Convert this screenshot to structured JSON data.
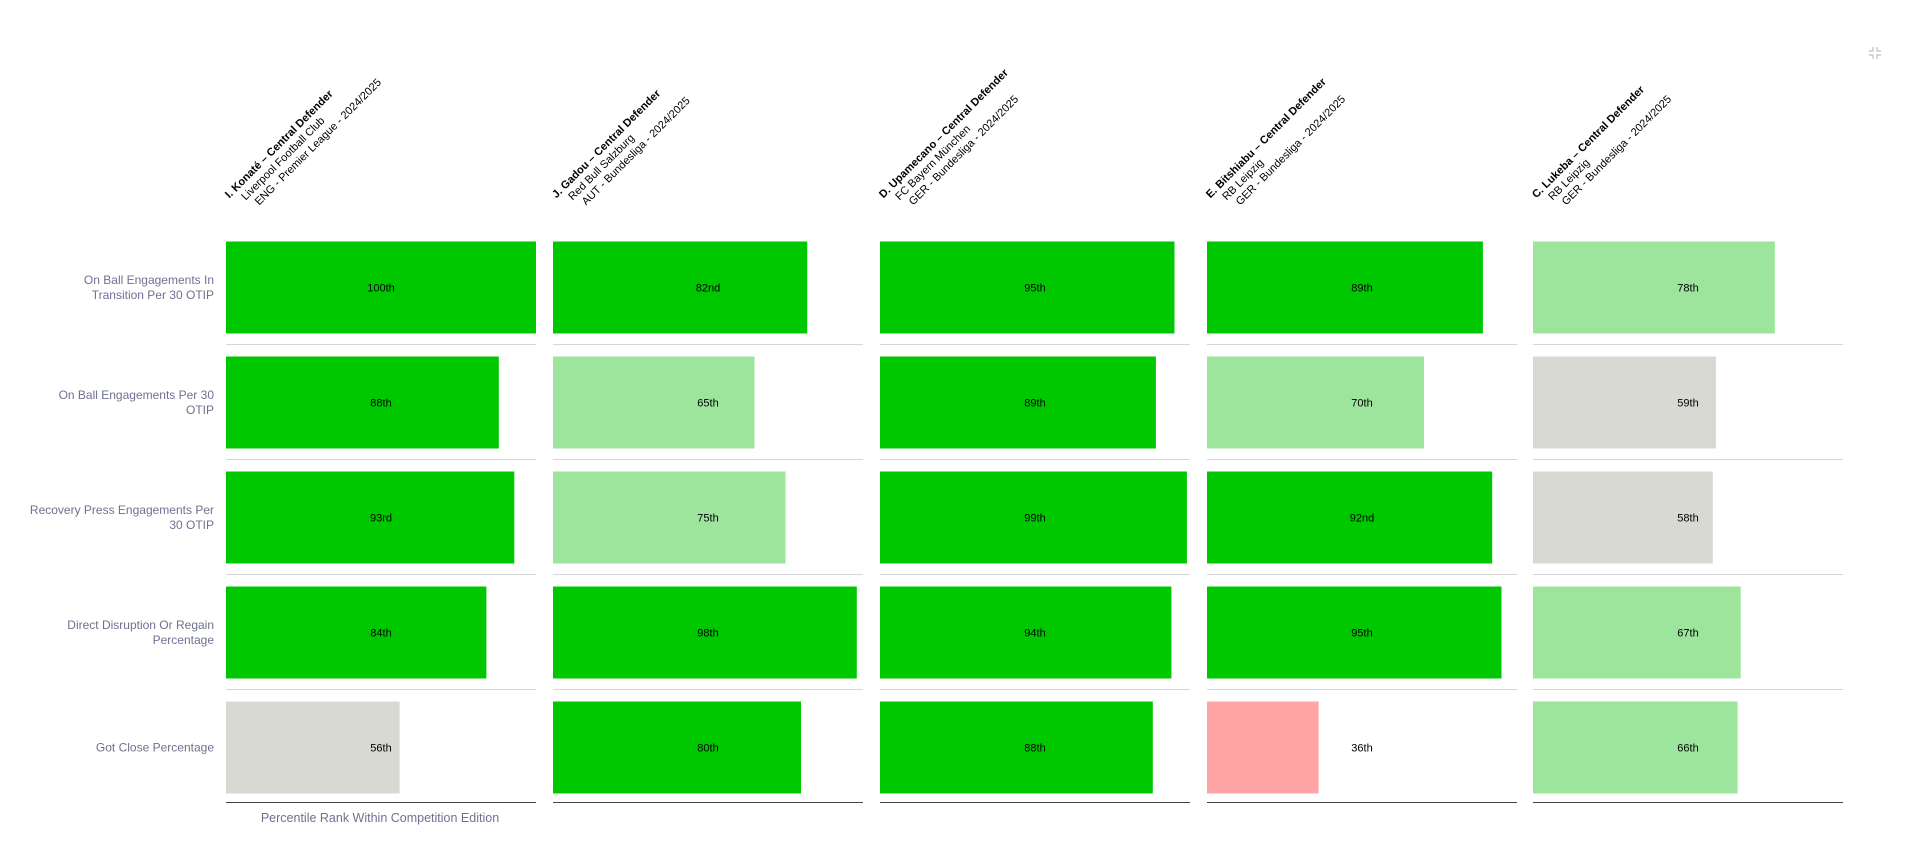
{
  "colors": {
    "high": "#00c800",
    "mid": "#9de59d",
    "neutral": "#d9d9d4",
    "low": "#ffa5a5",
    "row_label": "#6e7191",
    "icon": "#c8c8c8"
  },
  "icons": {
    "collapse": "collapse-icon"
  },
  "chart_data": {
    "type": "bar",
    "orientation": "horizontal",
    "xlabel": "Percentile Rank Within Competition Edition",
    "xlim": [
      0,
      100
    ],
    "categories": [
      "On Ball Engagements In Transition Per 30 OTIP",
      "On Ball Engagements Per 30 OTIP",
      "Recovery Press Engagements Per 30 OTIP",
      "Direct Disruption Or Regain Percentage",
      "Got Close Percentage"
    ],
    "series": [
      {
        "name": "I. Konaté – Central Defender",
        "club": "Liverpool Football Club",
        "competition": "ENG - Premier League - 2024/2025",
        "values": [
          100,
          88,
          93,
          84,
          56
        ],
        "labels": [
          "100th",
          "88th",
          "93rd",
          "84th",
          "56th"
        ]
      },
      {
        "name": "J. Gadou – Central Defender",
        "club": "Red Bull Salzburg",
        "competition": "AUT - Bundesliga - 2024/2025",
        "values": [
          82,
          65,
          75,
          98,
          80
        ],
        "labels": [
          "82nd",
          "65th",
          "75th",
          "98th",
          "80th"
        ]
      },
      {
        "name": "D. Upamecano – Central Defender",
        "club": "FC Bayern München",
        "competition": "GER - Bundesliga - 2024/2025",
        "values": [
          95,
          89,
          99,
          94,
          88
        ],
        "labels": [
          "95th",
          "89th",
          "99th",
          "94th",
          "88th"
        ]
      },
      {
        "name": "E. Bitshiabu – Central Defender",
        "club": "RB Leipzig",
        "competition": "GER - Bundesliga - 2024/2025",
        "values": [
          89,
          70,
          92,
          95,
          36
        ],
        "labels": [
          "89th",
          "70th",
          "92nd",
          "95th",
          "36th"
        ]
      },
      {
        "name": "C. Lukeba – Central Defender",
        "club": "RB Leipzig",
        "competition": "GER - Bundesliga - 2024/2025",
        "values": [
          78,
          59,
          58,
          67,
          66
        ],
        "labels": [
          "78th",
          "59th",
          "58th",
          "67th",
          "66th"
        ]
      }
    ]
  }
}
